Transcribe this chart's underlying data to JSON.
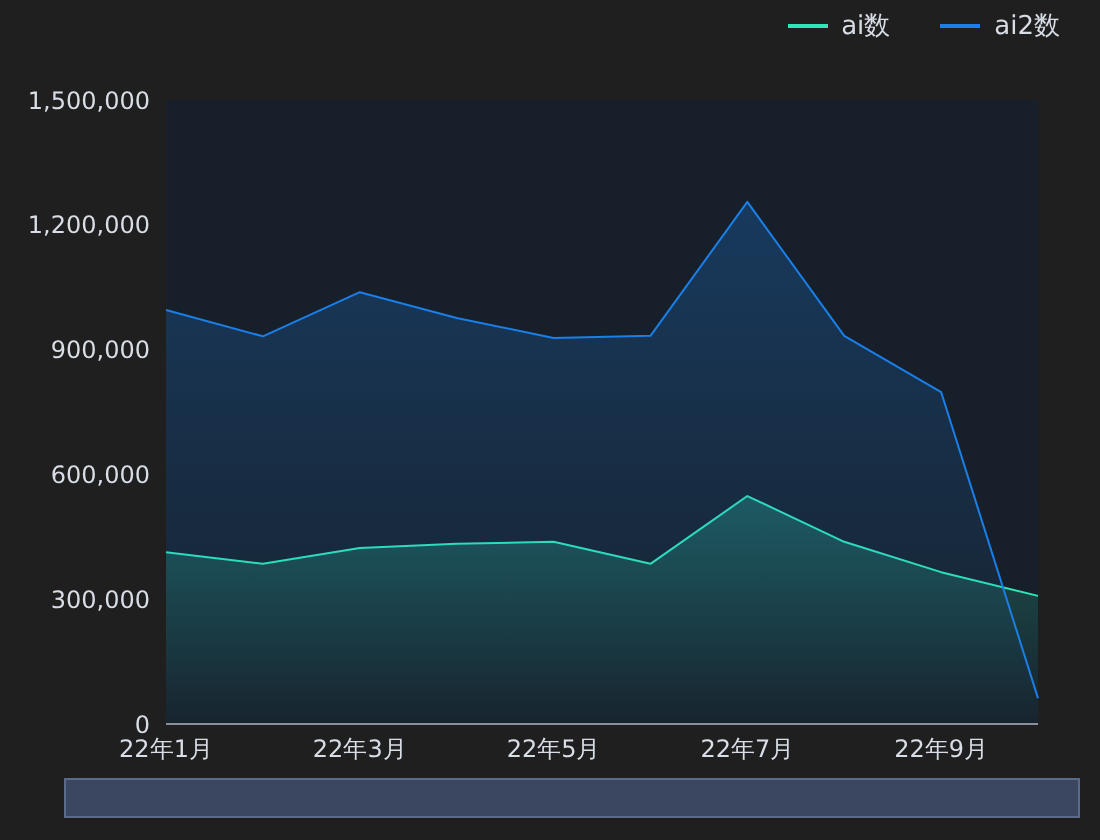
{
  "chart_data": {
    "type": "area",
    "categories": [
      "22年1月",
      null,
      "22年3月",
      null,
      "22年5月",
      null,
      "22年7月",
      null,
      "22年9月",
      null
    ],
    "series": [
      {
        "name": "ai数",
        "color": "#2ee6b8",
        "values": [
          413000,
          385000,
          423000,
          433000,
          438000,
          385000,
          548000,
          438000,
          365000,
          308000
        ]
      },
      {
        "name": "ai2数",
        "color": "#1a7fe8",
        "values": [
          995000,
          932000,
          1038000,
          976000,
          928000,
          933000,
          1255000,
          933000,
          798000,
          62000
        ]
      }
    ],
    "ylim": [
      0,
      1500000
    ],
    "yticks": [
      0,
      {
        "value": 300000,
        "label": "300,000"
      },
      {
        "value": 600000,
        "label": "600,000"
      },
      {
        "value": 900000,
        "label": "900,000"
      },
      {
        "value": 1200000,
        "label": "1,200,000"
      },
      {
        "value": 1500000,
        "label": "1,500,000"
      }
    ],
    "legend": "top right",
    "marker": "none",
    "line_style": "solid"
  }
}
